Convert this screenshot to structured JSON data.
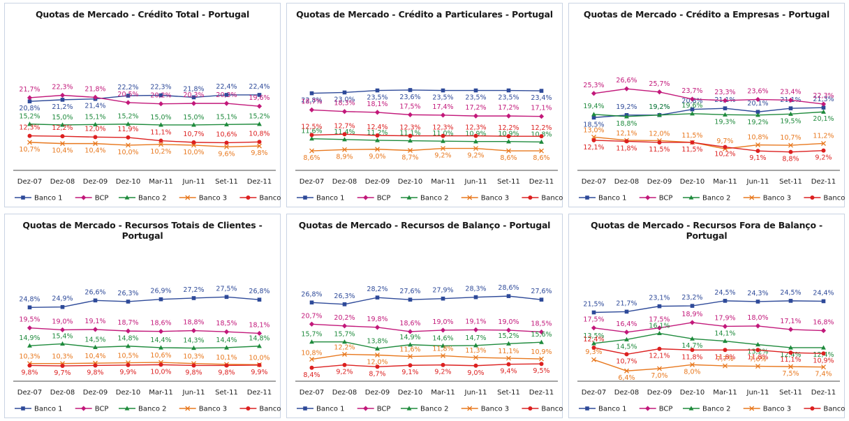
{
  "colors": {
    "Banco 1": "#2e4a99",
    "BCP": "#c2187a",
    "Banco 2": "#1e8a3c",
    "Banco 3": "#e8781e",
    "Banco 4": "#dc2020"
  },
  "markers": {
    "Banco 1": "square",
    "BCP": "diamond",
    "Banco 2": "triangle",
    "Banco 3": "cross",
    "Banco 4": "circle"
  },
  "chart_data": [
    {
      "type": "line",
      "title": "Quotas de Mercado - Crédito Total  - Portugal",
      "categories": [
        "Dez-07",
        "Dez-08",
        "Dez-09",
        "Dez-10",
        "Mar-11",
        "Jun-11",
        "Set-11",
        "Dez-11"
      ],
      "ylim": [
        5,
        26
      ],
      "legend": "bottom",
      "series": [
        {
          "name": "Banco 1",
          "values": [
            20.8,
            21.2,
            21.4,
            22.2,
            22.3,
            21.8,
            22.4,
            22.4
          ],
          "labels": [
            "20,8%",
            "21,2%",
            "21,4%",
            "22,2%",
            "22,3%",
            "21,8%",
            "22,4%",
            "22,4%"
          ]
        },
        {
          "name": "BCP",
          "values": [
            21.7,
            22.3,
            21.8,
            20.5,
            20.2,
            20.3,
            20.3,
            19.6
          ],
          "labels": [
            "21,7%",
            "22,3%",
            "21,8%",
            "20,5%",
            "20,2%",
            "20,3%",
            "20,3%",
            "19,6%"
          ]
        },
        {
          "name": "Banco 2",
          "values": [
            15.2,
            15.0,
            15.1,
            15.2,
            15.0,
            15.0,
            15.1,
            15.2
          ],
          "labels": [
            "15,2%",
            "15,0%",
            "15,1%",
            "15,2%",
            "15,0%",
            "15,0%",
            "15,1%",
            "15,2%"
          ]
        },
        {
          "name": "Banco 3",
          "values": [
            10.7,
            10.4,
            10.4,
            10.0,
            10.2,
            10.0,
            9.6,
            9.8
          ],
          "labels": [
            "10,7%",
            "10,4%",
            "10,4%",
            "10,0%",
            "10,2%",
            "10,0%",
            "9,6%",
            "9,8%"
          ]
        },
        {
          "name": "Banco 4",
          "values": [
            12.3,
            12.2,
            12.0,
            11.9,
            11.1,
            10.7,
            10.6,
            10.8
          ],
          "labels": [
            "12,3%",
            "12,2%",
            "12,0%",
            "11,9%",
            "11,1%",
            "10,7%",
            "10,6%",
            "10,8%"
          ]
        }
      ]
    },
    {
      "type": "line",
      "title": "Quotas de Mercado - Crédito a Particulares - Portugal",
      "categories": [
        "Dez-07",
        "Dez-08",
        "Dez-09",
        "Dez-10",
        "Mar-11",
        "Jun-11",
        "Set-11",
        "Dez-11"
      ],
      "ylim": [
        5,
        26
      ],
      "legend": "bottom",
      "series": [
        {
          "name": "Banco 1",
          "values": [
            22.8,
            23.0,
            23.5,
            23.6,
            23.5,
            23.5,
            23.5,
            23.4
          ],
          "labels": [
            "22,8%",
            "23,0%",
            "23,5%",
            "23,6%",
            "23,5%",
            "23,5%",
            "23,5%",
            "23,4%"
          ]
        },
        {
          "name": "BCP",
          "values": [
            18.7,
            18.3,
            18.1,
            17.5,
            17.4,
            17.2,
            17.2,
            17.1
          ],
          "labels": [
            "18,7%",
            "18,3%",
            "18,1%",
            "17,5%",
            "17,4%",
            "17,2%",
            "17,2%",
            "17,1%"
          ]
        },
        {
          "name": "Banco 2",
          "values": [
            11.6,
            11.4,
            11.2,
            11.1,
            11.0,
            10.9,
            10.9,
            10.8
          ],
          "labels": [
            "11,6%",
            "11,4%",
            "11,2%",
            "11,1%",
            "11,0%",
            "10,9%",
            "10,9%",
            "10,8%"
          ]
        },
        {
          "name": "Banco 3",
          "values": [
            8.6,
            8.9,
            9.0,
            8.7,
            9.2,
            9.2,
            8.6,
            8.6
          ],
          "labels": [
            "8,6%",
            "8,9%",
            "9,0%",
            "8,7%",
            "9,2%",
            "9,2%",
            "8,6%",
            "8,6%"
          ]
        },
        {
          "name": "Banco 4",
          "values": [
            12.5,
            12.7,
            12.4,
            12.3,
            12.3,
            12.3,
            12.2,
            12.2
          ],
          "labels": [
            "12,5%",
            "12,7%",
            "12,4%",
            "12,3%",
            "12,3%",
            "12,3%",
            "12,2%",
            "12,2%"
          ]
        }
      ]
    },
    {
      "type": "line",
      "title": "Quotas de Mercado - Crédito a Empresas - Portugal",
      "categories": [
        "Dez-07",
        "Dez-08",
        "Dez-09",
        "Dez-10",
        "Mar-11",
        "Jun-11",
        "Set-11",
        "Dez-11"
      ],
      "ylim": [
        5,
        29
      ],
      "legend": "bottom",
      "series": [
        {
          "name": "Banco 1",
          "values": [
            18.5,
            19.2,
            19.2,
            20.8,
            21.1,
            20.1,
            21.1,
            21.3
          ],
          "labels": [
            "18,5%",
            "19,2%",
            "19,2%",
            "20,8%",
            "21,1%",
            "20,1%",
            "21,1%",
            "21,3%"
          ]
        },
        {
          "name": "BCP",
          "values": [
            25.3,
            26.6,
            25.7,
            23.7,
            23.3,
            23.6,
            23.4,
            22.3
          ],
          "labels": [
            "25,3%",
            "26,6%",
            "25,7%",
            "23,7%",
            "23,3%",
            "23,6%",
            "23,4%",
            "22,3%"
          ]
        },
        {
          "name": "Banco 2",
          "values": [
            19.4,
            18.8,
            19.2,
            19.6,
            19.3,
            19.2,
            19.5,
            20.1
          ],
          "labels": [
            "19,4%",
            "18,8%",
            "19,2%",
            "19,6%",
            "19,3%",
            "19,2%",
            "19,5%",
            "20,1%"
          ]
        },
        {
          "name": "Banco 3",
          "values": [
            13.0,
            12.1,
            12.0,
            11.5,
            9.7,
            10.8,
            10.7,
            11.2
          ],
          "labels": [
            "13,0%",
            "12,1%",
            "12,0%",
            "11,5%",
            "9,7%",
            "10,8%",
            "10,7%",
            "11,2%"
          ]
        },
        {
          "name": "Banco 4",
          "values": [
            12.1,
            11.8,
            11.5,
            11.5,
            10.2,
            9.1,
            8.8,
            9.2
          ],
          "labels": [
            "12,1%",
            "11,8%",
            "11,5%",
            "11,5%",
            "10,2%",
            "9,1%",
            "8,8%",
            "9,2%"
          ]
        }
      ]
    },
    {
      "type": "line",
      "title": "Quotas de Mercado - Recursos Totais de Clientes - Portugal",
      "categories": [
        "Dez-07",
        "Dez-08",
        "Dez-09",
        "Dez-10",
        "Mar-11",
        "Jun-11",
        "Set-11",
        "Dez-11"
      ],
      "ylim": [
        7,
        29
      ],
      "legend": "bottom",
      "series": [
        {
          "name": "Banco 1",
          "values": [
            24.8,
            24.9,
            26.6,
            26.3,
            26.9,
            27.2,
            27.5,
            26.8
          ],
          "labels": [
            "24,8%",
            "24,9%",
            "26,6%",
            "26,3%",
            "26,9%",
            "27,2%",
            "27,5%",
            "26,8%"
          ]
        },
        {
          "name": "BCP",
          "values": [
            19.5,
            19.0,
            19.1,
            18.7,
            18.6,
            18.8,
            18.5,
            18.1
          ],
          "labels": [
            "19,5%",
            "19,0%",
            "19,1%",
            "18,7%",
            "18,6%",
            "18,8%",
            "18,5%",
            "18,1%"
          ]
        },
        {
          "name": "Banco 2",
          "values": [
            14.9,
            15.4,
            14.5,
            14.8,
            14.4,
            14.3,
            14.4,
            14.8
          ],
          "labels": [
            "14,9%",
            "15,4%",
            "14,5%",
            "14,8%",
            "14,4%",
            "14,3%",
            "14,4%",
            "14,8%"
          ]
        },
        {
          "name": "Banco 3",
          "values": [
            10.3,
            10.3,
            10.4,
            10.5,
            10.6,
            10.3,
            10.1,
            10.0
          ],
          "labels": [
            "10,3%",
            "10,3%",
            "10,4%",
            "10,5%",
            "10,6%",
            "10,3%",
            "10,1%",
            "10,0%"
          ]
        },
        {
          "name": "Banco 4",
          "values": [
            9.8,
            9.7,
            9.8,
            9.9,
            10.0,
            9.8,
            9.8,
            9.9
          ],
          "labels": [
            "9,8%",
            "9,7%",
            "9,8%",
            "9,9%",
            "10,0%",
            "9,8%",
            "9,8%",
            "9,9%"
          ]
        }
      ]
    },
    {
      "type": "line",
      "title": "Quotas de Mercado - Recursos de Balanço - Portugal",
      "categories": [
        "Dez-07",
        "Dez-08",
        "Dez-09",
        "Dez-10",
        "Mar-11",
        "Jun-11",
        "Set-11",
        "Dez-11"
      ],
      "ylim": [
        6,
        30
      ],
      "legend": "bottom",
      "series": [
        {
          "name": "Banco 1",
          "values": [
            26.8,
            26.3,
            28.2,
            27.6,
            27.9,
            28.3,
            28.6,
            27.6
          ],
          "labels": [
            "26,8%",
            "26,3%",
            "28,2%",
            "27,6%",
            "27,9%",
            "28,3%",
            "28,6%",
            "27,6%"
          ]
        },
        {
          "name": "BCP",
          "values": [
            20.7,
            20.2,
            19.8,
            18.6,
            19.0,
            19.1,
            19.0,
            18.5
          ],
          "labels": [
            "20,7%",
            "20,2%",
            "19,8%",
            "18,6%",
            "19,0%",
            "19,1%",
            "19,0%",
            "18,5%"
          ]
        },
        {
          "name": "Banco 2",
          "values": [
            15.7,
            15.7,
            13.8,
            14.9,
            14.6,
            14.7,
            15.2,
            15.6
          ],
          "labels": [
            "15,7%",
            "15,7%",
            "13,8%",
            "14,9%",
            "14,6%",
            "14,7%",
            "15,2%",
            "15,6%"
          ]
        },
        {
          "name": "Banco 3",
          "values": [
            10.8,
            12.2,
            12.0,
            11.6,
            11.8,
            11.3,
            11.1,
            10.9
          ],
          "labels": [
            "10,8%",
            "12,2%",
            "12,0%",
            "11,6%",
            "11,8%",
            "11,3%",
            "11,1%",
            "10,9%"
          ]
        },
        {
          "name": "Banco 4",
          "values": [
            8.4,
            9.2,
            8.7,
            9.1,
            9.2,
            9.0,
            9.4,
            9.5
          ],
          "labels": [
            "8,4%",
            "9,2%",
            "8,7%",
            "9,1%",
            "9,2%",
            "9,0%",
            "9,4%",
            "9,5%"
          ]
        }
      ]
    },
    {
      "type": "line",
      "title": "Quotas de Mercado - Recursos Fora de Balanço - Portugal",
      "categories": [
        "Dez-07",
        "Dez-08",
        "Dez-09",
        "Dez-10",
        "Mar-11",
        "Jun-11",
        "Set-11",
        "Dez-11"
      ],
      "ylim": [
        5,
        27
      ],
      "legend": "bottom",
      "series": [
        {
          "name": "Banco 1",
          "values": [
            21.5,
            21.7,
            23.1,
            23.2,
            24.5,
            24.3,
            24.5,
            24.4
          ],
          "labels": [
            "21,5%",
            "21,7%",
            "23,1%",
            "23,2%",
            "24,5%",
            "24,3%",
            "24,5%",
            "24,4%"
          ]
        },
        {
          "name": "BCP",
          "values": [
            17.5,
            16.4,
            17.5,
            18.9,
            17.9,
            18.0,
            17.1,
            16.8
          ],
          "labels": [
            "17,5%",
            "16,4%",
            "17,5%",
            "18,9%",
            "17,9%",
            "18,0%",
            "17,1%",
            "16,8%"
          ]
        },
        {
          "name": "Banco 2",
          "values": [
            13.5,
            14.5,
            16.1,
            14.7,
            14.1,
            13.2,
            12.4,
            12.4
          ],
          "labels": [
            "13,5%",
            "14,5%",
            "16,1%",
            "14,7%",
            "14,1%",
            "13,2%",
            "12,4%",
            "12,4%"
          ]
        },
        {
          "name": "Banco 3",
          "values": [
            9.3,
            6.4,
            7.0,
            8.0,
            7.7,
            7.6,
            7.5,
            7.4
          ],
          "labels": [
            "9,3%",
            "6,4%",
            "7,0%",
            "8,0%",
            "7,7%",
            "7,6%",
            "7,5%",
            "7,4%"
          ]
        },
        {
          "name": "Banco 4",
          "values": [
            12.4,
            10.7,
            12.1,
            11.8,
            11.8,
            11.8,
            11.1,
            10.9
          ],
          "labels": [
            "12,4%",
            "10,7%",
            "12,1%",
            "11,8%",
            "11,8%",
            "11,8%",
            "11,1%",
            "10,9%"
          ]
        }
      ]
    }
  ]
}
